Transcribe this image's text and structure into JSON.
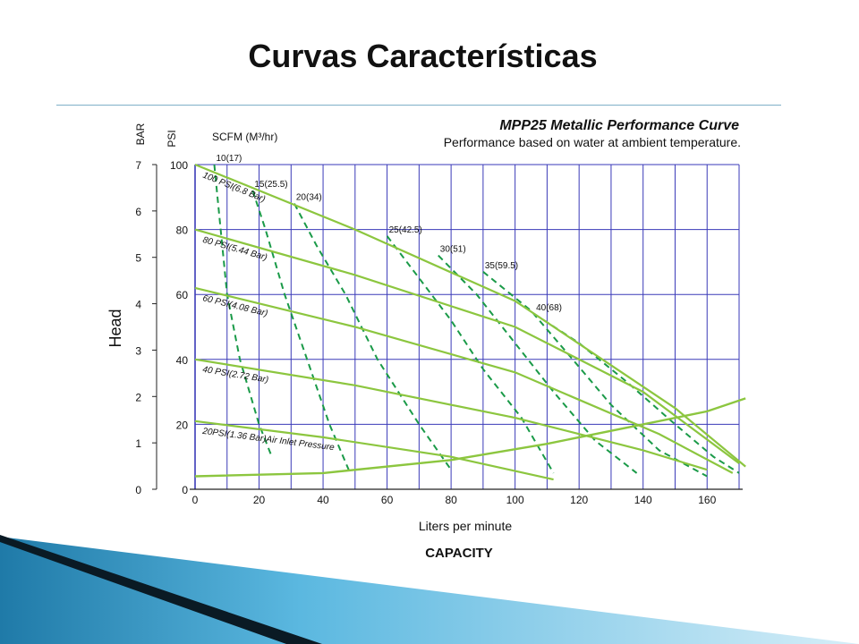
{
  "slide": {
    "title": "Curvas Características"
  },
  "chart_data": {
    "type": "line",
    "title": "MPP25 Metallic Performance Curve",
    "subtitle": "Performance based on water at ambient temperature.",
    "xlabel": "Liters per minute",
    "xlabel_secondary": "CAPACITY",
    "ylabel": "Head",
    "y_unit_primary": "PSI",
    "y_unit_secondary": "BAR",
    "air_unit": "SCFM (M³/hr)",
    "xlim": [
      0,
      170
    ],
    "ylim": [
      0,
      100
    ],
    "x_ticks": [
      0,
      20,
      40,
      60,
      80,
      100,
      120,
      140,
      160
    ],
    "psi_ticks": [
      0,
      20,
      40,
      60,
      80,
      100
    ],
    "bar_ticks": [
      0,
      1,
      2,
      3,
      4,
      5,
      6,
      7
    ],
    "bar_max": 7,
    "grid": true,
    "air_pressure_series": [
      {
        "name": "100 PSI(6.8 Bar)",
        "points": [
          [
            0,
            100
          ],
          [
            50,
            80
          ],
          [
            100,
            58
          ],
          [
            150,
            25
          ],
          [
            172,
            7
          ]
        ]
      },
      {
        "name": "80 PSI(5.44 Bar)",
        "points": [
          [
            0,
            80
          ],
          [
            50,
            66
          ],
          [
            100,
            50
          ],
          [
            140,
            30
          ],
          [
            170,
            8
          ]
        ]
      },
      {
        "name": "60 PSI(4.08 Bar)",
        "points": [
          [
            0,
            62
          ],
          [
            50,
            50
          ],
          [
            100,
            36
          ],
          [
            145,
            17
          ],
          [
            168,
            5
          ]
        ]
      },
      {
        "name": "40 PSI(2.72 Bar)",
        "points": [
          [
            0,
            40
          ],
          [
            50,
            32
          ],
          [
            100,
            22
          ],
          [
            140,
            12
          ],
          [
            160,
            6
          ]
        ]
      },
      {
        "name": "20PSI(1.36 Bar)",
        "points": [
          [
            0,
            21
          ],
          [
            40,
            16
          ],
          [
            80,
            10
          ],
          [
            112,
            3
          ]
        ]
      }
    ],
    "air_pressure_label": "Air Inlet Pressure",
    "air_consumption_series": [
      {
        "name": "10(17)",
        "points": [
          [
            6,
            100
          ],
          [
            8,
            80
          ],
          [
            10,
            60
          ],
          [
            14,
            40
          ],
          [
            20,
            20
          ],
          [
            24,
            10
          ]
        ]
      },
      {
        "name": "15(25.5)",
        "points": [
          [
            18,
            92
          ],
          [
            22,
            80
          ],
          [
            28,
            60
          ],
          [
            35,
            40
          ],
          [
            42,
            20
          ],
          [
            48,
            6
          ]
        ]
      },
      {
        "name": "20(34)",
        "points": [
          [
            31,
            88
          ],
          [
            38,
            75
          ],
          [
            47,
            60
          ],
          [
            57,
            40
          ],
          [
            70,
            20
          ],
          [
            80,
            6
          ]
        ]
      },
      {
        "name": "25(42.5)",
        "points": [
          [
            60,
            78
          ],
          [
            70,
            65
          ],
          [
            80,
            52
          ],
          [
            90,
            37
          ],
          [
            102,
            22
          ],
          [
            112,
            5
          ]
        ]
      },
      {
        "name": "30(51)",
        "points": [
          [
            76,
            72
          ],
          [
            88,
            60
          ],
          [
            100,
            45
          ],
          [
            112,
            30
          ],
          [
            125,
            15
          ],
          [
            138,
            5
          ]
        ]
      },
      {
        "name": "35(59.5)",
        "points": [
          [
            90,
            67
          ],
          [
            105,
            55
          ],
          [
            118,
            40
          ],
          [
            130,
            26
          ],
          [
            145,
            12
          ],
          [
            160,
            4
          ]
        ]
      },
      {
        "name": "40(68)",
        "points": [
          [
            106,
            54
          ],
          [
            120,
            45
          ],
          [
            135,
            33
          ],
          [
            150,
            20
          ],
          [
            162,
            10
          ],
          [
            170,
            5
          ]
        ]
      }
    ],
    "npsh_curve": {
      "points": [
        [
          0,
          4
        ],
        [
          40,
          5
        ],
        [
          80,
          9
        ],
        [
          110,
          14
        ],
        [
          140,
          20
        ],
        [
          160,
          24
        ],
        [
          172,
          28
        ]
      ]
    },
    "colors": {
      "solid_curve": "#8cc63f",
      "dashed_curve": "#1a9a48",
      "grid": "#3a3ab8",
      "slide_accent_dark": "#0b5477",
      "slide_accent_light": "#5bb8e0"
    }
  }
}
